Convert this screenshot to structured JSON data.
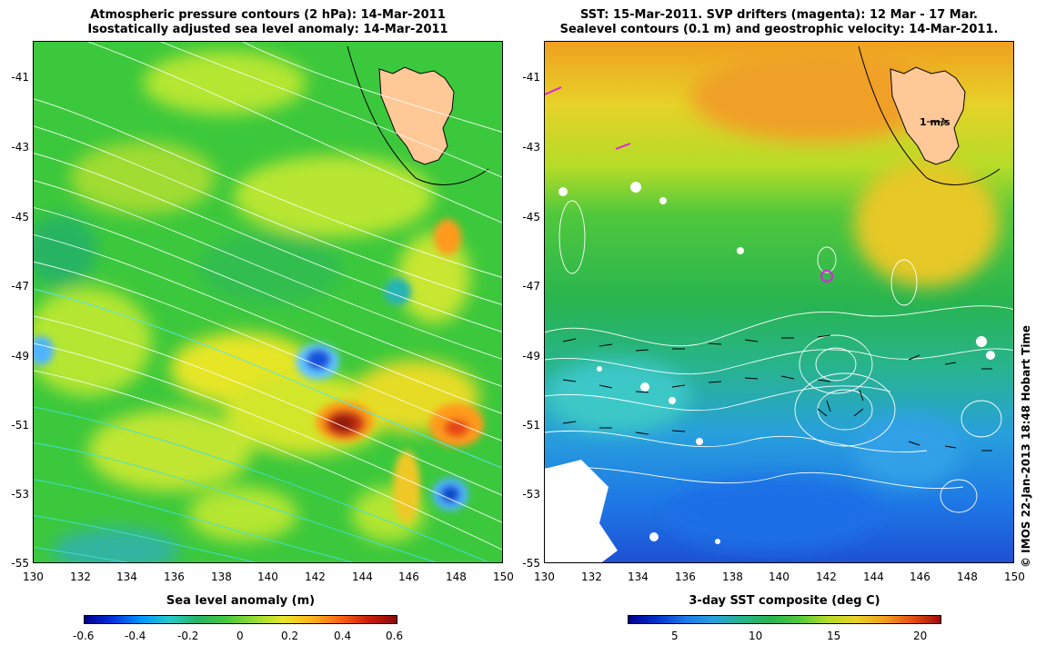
{
  "left_panel": {
    "title_line1": "Atmospheric pressure contours (2 hPa): 14-Mar-2011",
    "title_line2": "Isostatically adjusted sea level anomaly: 14-Mar-2011",
    "colorbar_label": "Sea level anomaly (m)",
    "colorbar_ticks": [
      "-0.6",
      "-0.4",
      "-0.2",
      "0",
      "0.2",
      "0.4",
      "0.6"
    ],
    "colorbar_range": [
      -0.6,
      0.6
    ]
  },
  "right_panel": {
    "title_line1": "SST: 15-Mar-2011. SVP drifters (magenta): 12 Mar - 17 Mar.",
    "title_line2": "Sealevel contours (0.1 m) and geostrophic velocity: 14-Mar-2011.",
    "colorbar_label": "3-day SST composite (deg C)",
    "colorbar_ticks": [
      "5",
      "10",
      "15",
      "20"
    ],
    "colorbar_range": [
      2,
      22
    ],
    "velocity_scale_label": "1 m/s"
  },
  "x_axis_ticks": [
    "130",
    "132",
    "134",
    "136",
    "138",
    "140",
    "142",
    "144",
    "146",
    "148",
    "150"
  ],
  "y_axis_ticks": [
    "-41",
    "-43",
    "-45",
    "-47",
    "-49",
    "-51",
    "-53",
    "-55"
  ],
  "credit": "© IMOS 22-Jan-2013 18:48 Hobart Time",
  "colors": {
    "land": "#ffc896",
    "contour_white": "#ffffff",
    "contour_cyan": "#40e0e0",
    "drifter": "#e020e0"
  },
  "chart_data": [
    {
      "type": "heatmap",
      "title": "Isostatically adjusted sea level anomaly: 14-Mar-2011",
      "variable": "Sea level anomaly (m)",
      "xlim": [
        130,
        150
      ],
      "ylim": [
        -55,
        -40
      ],
      "value_range": [
        -0.6,
        0.6
      ],
      "features": [
        {
          "kind": "low",
          "lon": 142.1,
          "lat": -49.1,
          "value": -0.45
        },
        {
          "kind": "high",
          "lon": 143.5,
          "lat": -50.8,
          "value": 0.55
        },
        {
          "kind": "low",
          "lon": 147.8,
          "lat": -52.9,
          "value": -0.4
        },
        {
          "kind": "high",
          "lon": 148.2,
          "lat": -51.0,
          "value": 0.35
        },
        {
          "kind": "high",
          "lon": 147.7,
          "lat": -45.4,
          "value": 0.3
        },
        {
          "kind": "low",
          "lon": 131.2,
          "lat": -45.3,
          "value": -0.15
        },
        {
          "kind": "low",
          "lon": 130.3,
          "lat": -48.9,
          "value": -0.25
        }
      ]
    },
    {
      "type": "heatmap",
      "title": "SST: 15-Mar-2011",
      "variable": "3-day SST composite (deg C)",
      "xlim": [
        130,
        150
      ],
      "ylim": [
        -55,
        -40
      ],
      "value_range": [
        2,
        22
      ],
      "bands": [
        {
          "lat_from": -40,
          "lat_to": -44,
          "sst": 17
        },
        {
          "lat_from": -44,
          "lat_to": -47.5,
          "sst": 13
        },
        {
          "lat_from": -47.5,
          "lat_to": -52,
          "sst": 10
        },
        {
          "lat_from": -52,
          "lat_to": -55,
          "sst": 6
        }
      ],
      "drifters": [
        {
          "lon": 142.0,
          "lat": -46.7
        }
      ]
    }
  ]
}
